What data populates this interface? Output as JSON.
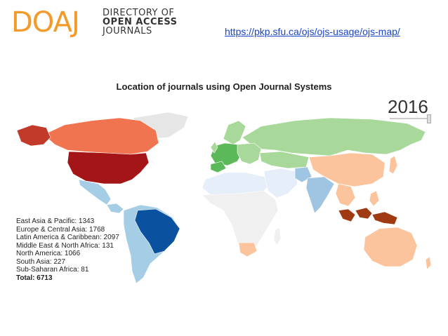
{
  "logo": {
    "mark": "DOAJ",
    "lines": [
      "DIRECTORY OF",
      "OPEN ACCESS",
      "JOURNALS"
    ]
  },
  "source_link": "https://pkp.sfu.ca/ojs/ojs-usage/ojs-map/",
  "map": {
    "title": "Location of journals using Open Journal Systems",
    "year": "2016",
    "year_slider_fraction": 0.97,
    "regions": [
      {
        "label": "East Asia & Pacific: 1343",
        "value": 1343
      },
      {
        "label": "Europe & Central Asia: 1768",
        "value": 1768
      },
      {
        "label": "Latin America & Caribbean: 2097",
        "value": 2097
      },
      {
        "label": "Middle East & North Africa: 131",
        "value": 131
      },
      {
        "label": "North America: 1066",
        "value": 1066
      },
      {
        "label": "South Asia: 227",
        "value": 227
      },
      {
        "label": "Sub-Saharan Africa: 81",
        "value": 81
      }
    ],
    "total_label": "Total: 6713",
    "total": 6713,
    "colors": {
      "north_america": "#f0744f",
      "usa": "#a31517",
      "greenland": "#c23a2a",
      "latin_america_light": "#a6cde6",
      "brazil": "#0a52a0",
      "europe_central_asia": "#a9d89b",
      "europe_core": "#5cb95a",
      "east_asia_pacific": "#fbc49c",
      "indonesia": "#a03a12",
      "south_asia": "#9fc5e3",
      "mena": "#e6eefa",
      "africa": "#f0f0f0",
      "no_data": "#e6e6e6"
    }
  }
}
